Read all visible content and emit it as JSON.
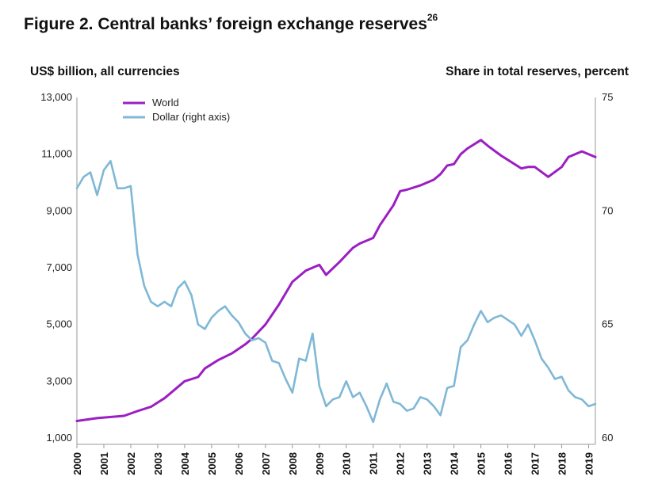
{
  "chart_data": {
    "type": "line",
    "title": "Figure 2. Central banks’ foreign exchange reserves",
    "title_superscript": "26",
    "ylabel_left": "US$ billion, all currencies",
    "ylabel_right": "Share in total reserves, percent",
    "left_axis": {
      "ylim": [
        1000,
        13000
      ],
      "ticks": [
        "1,000",
        "3,000",
        "5,000",
        "7,000",
        "9,000",
        "11,000",
        "13,000"
      ]
    },
    "right_axis": {
      "ylim": [
        60,
        75
      ],
      "ticks": [
        "60",
        "65",
        "70",
        "75"
      ]
    },
    "x_ticks": [
      "2000",
      "2001",
      "2002",
      "2003",
      "2004",
      "2005",
      "2006",
      "2007",
      "2008",
      "2009",
      "2010",
      "2011",
      "2012",
      "2013",
      "2014",
      "2015",
      "2016",
      "2017",
      "2018",
      "2019"
    ],
    "series": [
      {
        "name": "World",
        "axis": "left",
        "color": "#9b1fc1",
        "x": [
          2000.0,
          2000.75,
          2001.75,
          2002.25,
          2002.75,
          2003.25,
          2003.5,
          2004.0,
          2004.5,
          2004.75,
          2005.0,
          2005.25,
          2005.75,
          2006.25,
          2006.5,
          2007.0,
          2007.5,
          2008.0,
          2008.5,
          2009.0,
          2009.25,
          2009.75,
          2010.25,
          2010.5,
          2011.0,
          2011.25,
          2011.75,
          2012.0,
          2012.25,
          2012.75,
          2013.0,
          2013.25,
          2013.5,
          2013.75,
          2014.0,
          2014.25,
          2014.5,
          2015.0,
          2015.25,
          2015.75,
          2016.5,
          2016.75,
          2017.0,
          2017.5,
          2018.0,
          2018.25,
          2018.75,
          2019.25
        ],
        "values": [
          1600,
          1700,
          1780,
          1950,
          2100,
          2400,
          2600,
          3000,
          3150,
          3450,
          3600,
          3750,
          3980,
          4300,
          4500,
          5000,
          5700,
          6500,
          6900,
          7100,
          6750,
          7200,
          7700,
          7850,
          8050,
          8500,
          9200,
          9700,
          9750,
          9900,
          10000,
          10100,
          10300,
          10600,
          10650,
          11000,
          11200,
          11500,
          11300,
          10950,
          10500,
          10550,
          10550,
          10200,
          10550,
          10900,
          11100,
          10900
        ]
      },
      {
        "name": "Dollar (right axis)",
        "axis": "right",
        "color": "#7fb8d6",
        "x": [
          2000.0,
          2000.25,
          2000.5,
          2000.75,
          2001.0,
          2001.25,
          2001.5,
          2001.75,
          2002.0,
          2002.25,
          2002.5,
          2002.75,
          2003.0,
          2003.25,
          2003.5,
          2003.75,
          2004.0,
          2004.25,
          2004.5,
          2004.75,
          2005.0,
          2005.25,
          2005.5,
          2005.75,
          2006.0,
          2006.25,
          2006.5,
          2006.75,
          2007.0,
          2007.25,
          2007.5,
          2007.75,
          2008.0,
          2008.25,
          2008.5,
          2008.75,
          2009.0,
          2009.25,
          2009.5,
          2009.75,
          2010.0,
          2010.25,
          2010.5,
          2010.75,
          2011.0,
          2011.25,
          2011.5,
          2011.75,
          2012.0,
          2012.25,
          2012.5,
          2012.75,
          2013.0,
          2013.25,
          2013.5,
          2013.75,
          2014.0,
          2014.25,
          2014.5,
          2014.75,
          2015.0,
          2015.25,
          2015.5,
          2015.75,
          2016.0,
          2016.25,
          2016.5,
          2016.75,
          2017.0,
          2017.25,
          2017.5,
          2017.75,
          2018.0,
          2018.25,
          2018.5,
          2018.75,
          2019.0,
          2019.25
        ],
        "values": [
          71.0,
          71.5,
          71.7,
          70.7,
          71.8,
          72.2,
          71.0,
          71.0,
          71.1,
          68.1,
          66.7,
          66.0,
          65.8,
          66.0,
          65.8,
          66.6,
          66.9,
          66.3,
          65.0,
          64.8,
          65.3,
          65.6,
          65.8,
          65.4,
          65.1,
          64.6,
          64.3,
          64.4,
          64.2,
          63.4,
          63.3,
          62.6,
          62.0,
          63.5,
          63.4,
          64.6,
          62.3,
          61.4,
          61.7,
          61.8,
          62.5,
          61.8,
          62.0,
          61.4,
          60.7,
          61.7,
          62.4,
          61.6,
          61.5,
          61.2,
          61.3,
          61.8,
          61.7,
          61.4,
          61.0,
          62.2,
          62.3,
          64.0,
          64.3,
          65.0,
          65.6,
          65.1,
          65.3,
          65.4,
          65.2,
          65.0,
          64.5,
          65.0,
          64.3,
          63.5,
          63.1,
          62.6,
          62.7,
          62.1,
          61.8,
          61.7,
          61.4,
          61.5
        ]
      }
    ],
    "legend": [
      {
        "label": "World",
        "color": "#9b1fc1"
      },
      {
        "label": "Dollar (right axis)",
        "color": "#7fb8d6"
      }
    ],
    "legend_position": "top-left",
    "grid": false
  }
}
